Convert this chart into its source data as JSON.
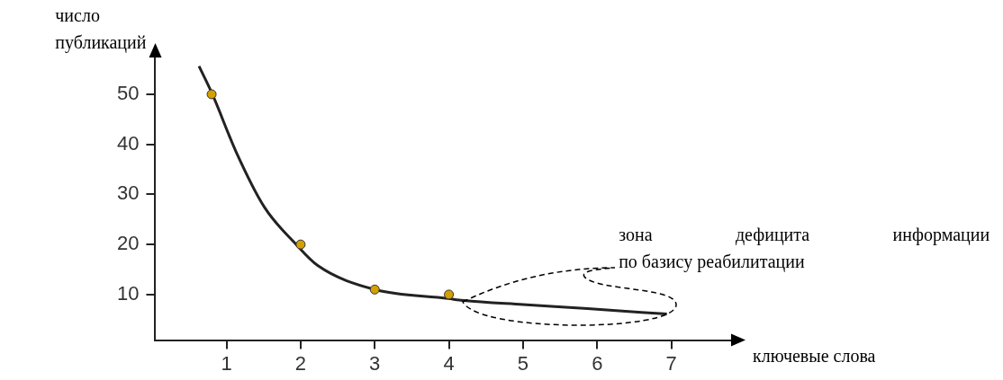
{
  "chart_data": {
    "type": "scatter",
    "ylabel": "число\nпубликаций",
    "xlabel": "ключевые слова",
    "xlim": [
      0.04,
      7.83
    ],
    "xticks": [
      1,
      2,
      3,
      4,
      5,
      6,
      7
    ],
    "ylim": [
      0.9,
      57.7
    ],
    "yticks": [
      10,
      20,
      30,
      40,
      50
    ],
    "grid": false,
    "legend": false,
    "annotations": [
      "зона дефицита информации\nпо базису реабилитации"
    ],
    "series": [
      {
        "type": "line",
        "color": "#222222",
        "marker": "none",
        "x": [
          0.63,
          0.81,
          1.13,
          1.51,
          1.94,
          2.23,
          3.0,
          3.99,
          4.2,
          5.0,
          5.87,
          6.94
        ],
        "values": [
          55.6,
          50,
          38.5,
          27.5,
          20,
          15.8,
          11,
          9.2,
          8.8,
          8.0,
          7.2,
          6.1
        ]
      },
      {
        "type": "scatter",
        "color": "#d4a000",
        "marker": "circle",
        "x": [
          0.8,
          2,
          3,
          4
        ],
        "values": [
          50,
          20,
          11,
          10
        ]
      }
    ]
  }
}
